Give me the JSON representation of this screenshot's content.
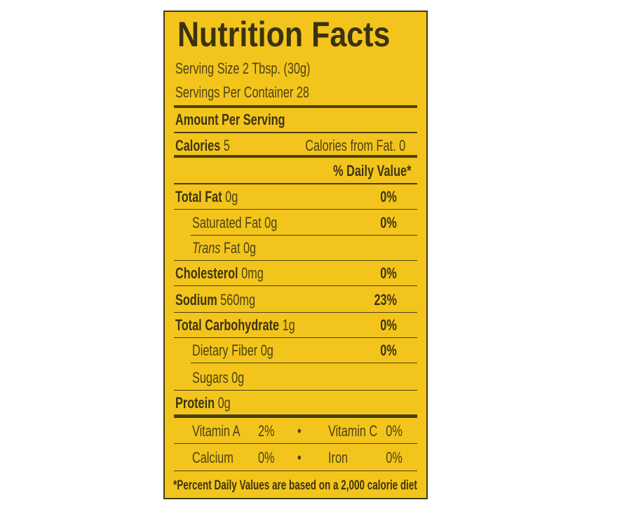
{
  "title": "Nutrition Facts",
  "serving_size": "Serving Size 2 Tbsp. (30g)",
  "servings_per_container": "Servings Per Container 28",
  "amount_per_serving": "Amount Per Serving",
  "calories": {
    "label": "Calories",
    "value": "5",
    "from_fat": "Calories from Fat. 0"
  },
  "daily_value_header": "% Daily Value*",
  "nutrients": [
    {
      "label": "Total Fat",
      "amount": "0g",
      "dv": "0%"
    },
    {
      "label": "Saturated Fat",
      "amount": "0g",
      "dv": "0%"
    },
    {
      "label": "Trans",
      "label2": "Fat",
      "amount": "0g",
      "dv": ""
    },
    {
      "label": "Cholesterol",
      "amount": "0mg",
      "dv": "0%"
    },
    {
      "label": "Sodium",
      "amount": "560mg",
      "dv": "23%"
    },
    {
      "label": "Total Carbohydrate",
      "amount": "1g",
      "dv": "0%"
    },
    {
      "label": "Dietary Fiber",
      "amount": "0g",
      "dv": "0%"
    },
    {
      "label": "Sugars",
      "amount": "0g",
      "dv": ""
    },
    {
      "label": "Protein",
      "amount": "0g",
      "dv": ""
    }
  ],
  "vitamins": [
    {
      "label": "Vitamin A",
      "value": "2%",
      "label2": "Vitamin C",
      "value2": "0%"
    },
    {
      "label": "Calcium",
      "value": "0%",
      "label2": "Iron",
      "value2": "0%"
    }
  ],
  "bullet": "•",
  "footnote": "*Percent Daily Values are based on a 2,000 calorie diet",
  "colors": {
    "background": "#f3c51c",
    "text": "#4e4212",
    "border": "#3f3c12"
  }
}
